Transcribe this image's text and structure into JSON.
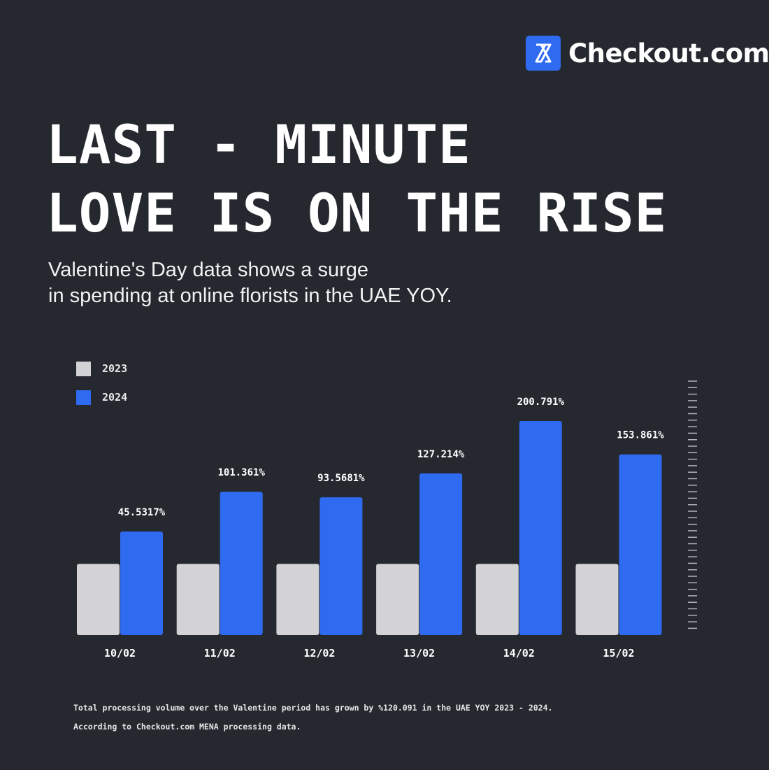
{
  "brand": {
    "name": "Checkout.com",
    "logo_icon": "hourglass-x-icon",
    "accent": "#2f6bf0"
  },
  "headline": {
    "line1": "LAST - MINUTE",
    "line2": "LOVE IS ON THE RISE"
  },
  "subtitle": {
    "line1": "Valentine's Day data shows a surge",
    "line2": "in spending at online florists in the UAE YOY."
  },
  "legend": [
    {
      "label": "2023",
      "color": "#d3d3d6"
    },
    {
      "label": "2024",
      "color": "#2f6bf0"
    }
  ],
  "chart_data": {
    "type": "bar",
    "categories": [
      "10/02",
      "11/02",
      "12/02",
      "13/02",
      "14/02",
      "15/02"
    ],
    "series": [
      {
        "name": "2023",
        "color": "#d3d3d6",
        "values": [
          100,
          100,
          100,
          100,
          100,
          100
        ]
      },
      {
        "name": "2024",
        "color": "#2f6bf0",
        "values": [
          145.5317,
          201.361,
          193.5681,
          227.214,
          300.791,
          253.861
        ]
      }
    ],
    "data_labels": [
      "45.5317%",
      "101.361%",
      "93.5681%",
      "127.214%",
      "200.791%",
      "153.861%"
    ],
    "ylim": [
      0,
      300.791
    ],
    "grid": false,
    "legend_position": "top-left"
  },
  "footnotes": {
    "line1": "Total processing volume over the Valentine period has grown by %120.091 in the UAE YOY 2023 - 2024.",
    "line2": "According to Checkout.com MENA processing data."
  }
}
